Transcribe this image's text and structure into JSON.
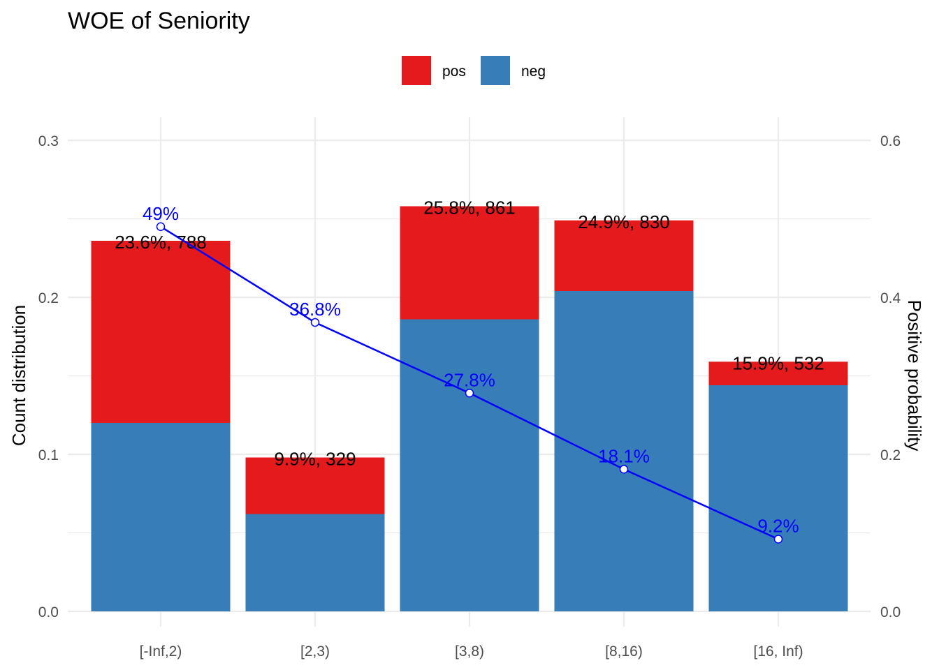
{
  "chart_data": {
    "type": "bar",
    "stacked": true,
    "title": "WOE of Seniority",
    "xlabel": "",
    "ylabel": "Count distribution",
    "y2label": "Positive probability",
    "ylim": [
      0,
      0.3
    ],
    "y2lim": [
      0,
      0.6
    ],
    "yticks": [
      "0.0",
      "0.1",
      "0.2",
      "0.3"
    ],
    "y2ticks": [
      "0.0",
      "0.2",
      "0.4",
      "0.6"
    ],
    "grid": true,
    "legend_position": "top",
    "categories": [
      "[-Inf,2)",
      "[2,3)",
      "[3,8)",
      "[8,16)",
      "[16, Inf)"
    ],
    "series": [
      {
        "name": "pos",
        "color": "#E41A1C",
        "values": [
          0.116,
          0.036,
          0.072,
          0.045,
          0.015
        ]
      },
      {
        "name": "neg",
        "color": "#377EB8",
        "values": [
          0.12,
          0.062,
          0.186,
          0.204,
          0.144
        ]
      }
    ],
    "bar_labels": [
      "23.6%, 788",
      "9.9%, 329",
      "25.8%, 861",
      "24.9%, 830",
      "15.9%, 532"
    ],
    "line": {
      "color": "#0000FF",
      "values": [
        0.49,
        0.368,
        0.278,
        0.181,
        0.092
      ],
      "labels": [
        "49%",
        "36.8%",
        "27.8%",
        "18.1%",
        "9.2%"
      ]
    }
  }
}
